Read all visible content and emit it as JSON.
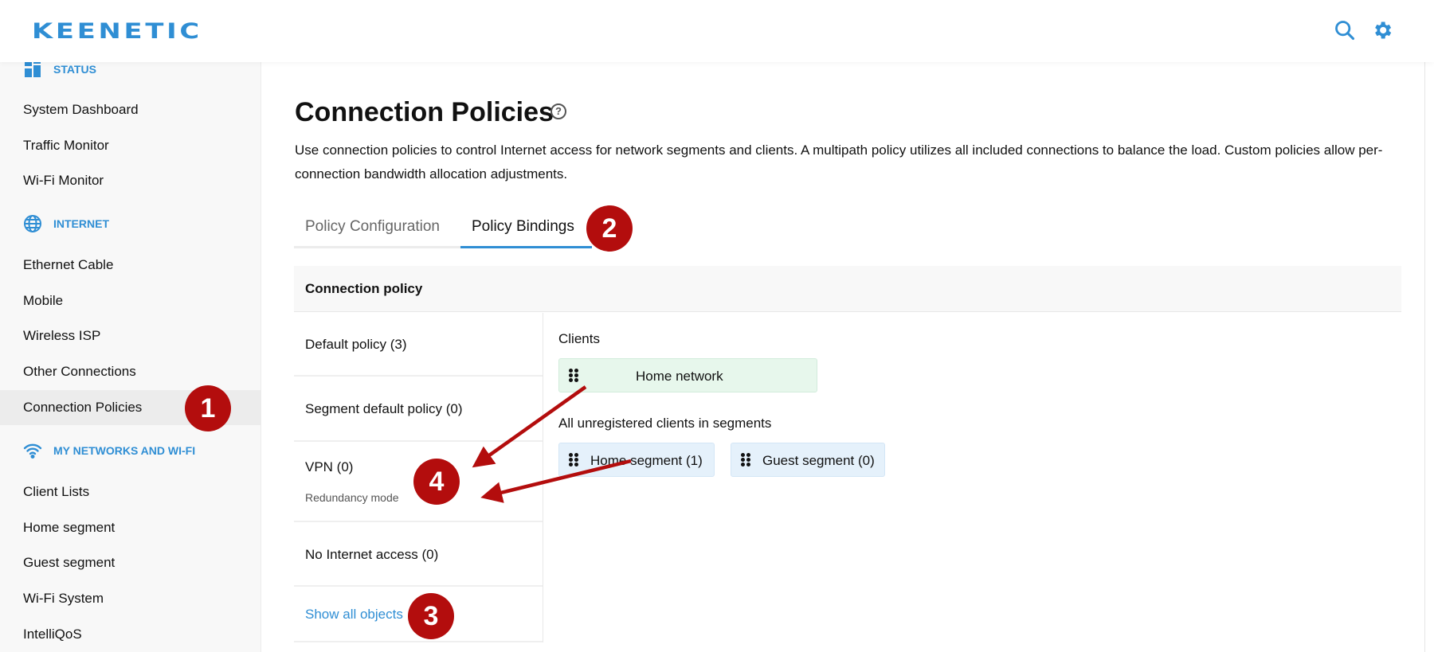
{
  "header": {
    "logo": "KEENETIC",
    "icons": [
      "search-icon",
      "gear-icon"
    ]
  },
  "sidebar": {
    "sections": [
      {
        "label": "STATUS",
        "icon": "dashboard-icon",
        "items": [
          "System Dashboard",
          "Traffic Monitor",
          "Wi-Fi Monitor"
        ]
      },
      {
        "label": "INTERNET",
        "icon": "globe-icon",
        "items": [
          "Ethernet Cable",
          "Mobile",
          "Wireless ISP",
          "Other Connections",
          "Connection Policies"
        ]
      },
      {
        "label": "MY NETWORKS AND WI-FI",
        "icon": "wifi-icon",
        "items": [
          "Client Lists",
          "Home segment",
          "Guest segment",
          "Wi-Fi System",
          "IntelliQoS"
        ]
      }
    ],
    "active": "Connection Policies"
  },
  "main": {
    "title": "Connection Policies",
    "help": "?",
    "description": "Use connection policies to control Internet access for network segments and clients. A multipath policy utilizes all included connections to balance the load. Custom policies allow per-connection bandwidth allocation adjustments.",
    "tabs": [
      {
        "label": "Policy Configuration"
      },
      {
        "label": "Policy Bindings",
        "active": true
      }
    ],
    "table_header": "Connection policy",
    "policies": [
      {
        "label": "Default policy (3)"
      },
      {
        "label": "Segment default policy (0)"
      },
      {
        "label": "VPN (0)",
        "sub": "Redundancy mode"
      },
      {
        "label": "No Internet access (0)"
      }
    ],
    "show_all": "Show all objects",
    "clients_label": "Clients",
    "clients": [
      "Home network"
    ],
    "segments_label": "All unregistered clients in segments",
    "segments": [
      "Home segment (1)",
      "Guest segment (0)"
    ]
  },
  "annotations": {
    "badges": [
      "1",
      "2",
      "3",
      "4"
    ],
    "color": "#b30d0d"
  },
  "colors": {
    "accent": "#2f8ed4",
    "client_chip": "#e7f7ec",
    "segment_chip": "#e5f1fb"
  }
}
